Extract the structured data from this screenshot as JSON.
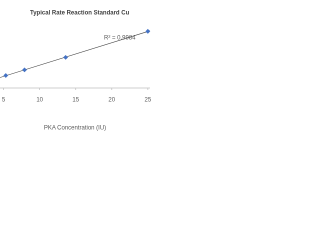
{
  "chart_data": {
    "type": "scatter",
    "title": "Typical Rate Reaction Standard Cu",
    "x_label": "PKA Concentration (IU)",
    "annotation": "R² = 0.9984",
    "x": [
      5.3,
      7.9,
      13.6,
      25
    ],
    "values": [
      0.055,
      0.08,
      0.135,
      0.25
    ],
    "color": "#4472c4",
    "trendline": true,
    "xlim": [
      4.5,
      25.3
    ],
    "xticks": [
      5,
      10,
      15,
      20,
      25
    ],
    "ylim": [
      0,
      0.3
    ]
  }
}
